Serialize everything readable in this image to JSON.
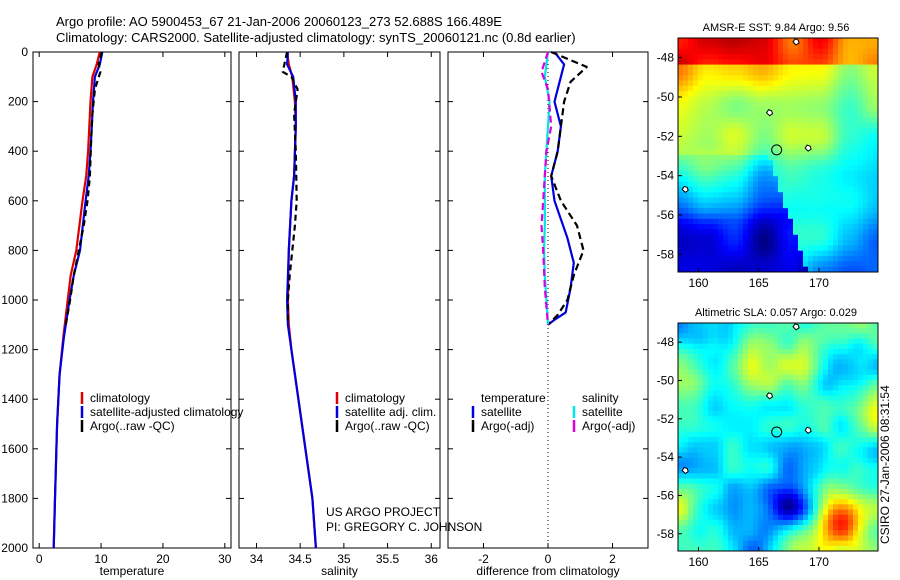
{
  "header": {
    "line1": "Argo profile: AO 5900453_67 21-Jan-2006 20060123_273 52.688S 166.489E",
    "line2": "Climatology: CARS2000. Satellite-adjusted climatology: synTS_20060121.nc (0.8d earlier)"
  },
  "credits": {
    "project": "US ARGO PROJECT",
    "pi": "PI: GREGORY C. JOHNSON",
    "stamp": "CSIRO 27-Jan-2006 08:31:54"
  },
  "colors": {
    "climatology": "#dd0000",
    "satellite": "#0000dd",
    "argo": "#000000",
    "salinity_satellite": "#00e5e5",
    "salinity_argo": "#dd00dd"
  },
  "chart_data": [
    {
      "id": "temperature",
      "type": "line",
      "xlabel": "temperature",
      "xlim": [
        -1,
        31
      ],
      "xticks": [
        0,
        10,
        20,
        30
      ],
      "xtick_labels": [
        "0",
        "10",
        "20",
        "30"
      ],
      "ylim": [
        2000,
        0
      ],
      "yticks": [
        0,
        200,
        400,
        600,
        800,
        1000,
        1200,
        1400,
        1600,
        1800,
        2000
      ],
      "ytick_labels": [
        "0",
        "200",
        "400",
        "600",
        "800",
        "1000",
        "1200",
        "1400",
        "1600",
        "1800",
        "2000"
      ],
      "legend": [
        "climatology",
        "satellite-adjusted climatology",
        "Argo(..raw -QC)"
      ],
      "series": [
        {
          "name": "climatology",
          "color": "#dd0000",
          "dash": "",
          "x": [
            9.8,
            9.3,
            8.6,
            8.3,
            8.1,
            7.9,
            7.6,
            7.0,
            6.0,
            5.1,
            4.6,
            3.9,
            3.3,
            2.9,
            2.55,
            2.35
          ],
          "y": [
            0,
            50,
            100,
            200,
            300,
            400,
            500,
            600,
            800,
            900,
            1000,
            1150,
            1300,
            1500,
            1800,
            2000
          ]
        },
        {
          "name": "satellite",
          "color": "#0000dd",
          "dash": "",
          "x": [
            10.2,
            9.8,
            9.0,
            8.7,
            8.5,
            8.3,
            8.0,
            7.5,
            6.6,
            5.6,
            4.9,
            4.0,
            3.3,
            2.9,
            2.55,
            2.35
          ],
          "y": [
            0,
            50,
            100,
            200,
            300,
            400,
            500,
            600,
            800,
            900,
            1000,
            1150,
            1300,
            1500,
            1800,
            2000
          ]
        },
        {
          "name": "Argo",
          "color": "#000000",
          "dash": "6,4",
          "x": [
            10.1,
            9.6,
            9.9,
            9.0,
            8.6,
            8.4,
            8.2,
            7.8,
            7.2,
            6.4,
            5.6,
            5.0,
            4.3
          ],
          "y": [
            0,
            50,
            80,
            150,
            250,
            350,
            500,
            600,
            700,
            800,
            900,
            1000,
            1100
          ]
        }
      ]
    },
    {
      "id": "salinity",
      "type": "line",
      "xlabel": "salinity",
      "xlim": [
        33.8,
        36.1
      ],
      "xticks": [
        34,
        34.5,
        35,
        35.5,
        36
      ],
      "xtick_labels": [
        "34",
        "34.5",
        "35",
        "35.5",
        "36"
      ],
      "ylim": [
        2000,
        0
      ],
      "legend": [
        "climatology",
        "satellite adj. clim.",
        "Argo(..raw -QC)"
      ],
      "series": [
        {
          "name": "climatology",
          "color": "#dd0000",
          "dash": "",
          "x": [
            34.35,
            34.37,
            34.41,
            34.44,
            34.45,
            34.43,
            34.4,
            34.37,
            34.36,
            34.37,
            34.4,
            34.48,
            34.56,
            34.64,
            34.68
          ],
          "y": [
            0,
            50,
            100,
            200,
            300,
            500,
            600,
            800,
            1000,
            1100,
            1200,
            1400,
            1600,
            1800,
            2000
          ]
        },
        {
          "name": "satellite",
          "color": "#0000dd",
          "dash": "",
          "x": [
            34.36,
            34.35,
            34.42,
            34.45,
            34.45,
            34.43,
            34.4,
            34.37,
            34.35,
            34.36,
            34.4,
            34.48,
            34.56,
            34.64,
            34.68
          ],
          "y": [
            0,
            50,
            100,
            200,
            300,
            500,
            600,
            800,
            1000,
            1100,
            1200,
            1400,
            1600,
            1800,
            2000
          ]
        },
        {
          "name": "Argo",
          "color": "#000000",
          "dash": "6,4",
          "x": [
            34.35,
            34.3,
            34.4,
            34.47,
            34.43,
            34.45,
            34.46,
            34.44,
            34.41,
            34.38,
            34.36,
            34.36
          ],
          "y": [
            0,
            80,
            100,
            150,
            250,
            400,
            600,
            700,
            800,
            900,
            1000,
            1100
          ]
        }
      ]
    },
    {
      "id": "difference",
      "type": "line",
      "xlabel": "difference from climatology",
      "xlim": [
        -3.1,
        3.1
      ],
      "xticks": [
        -2,
        0,
        2
      ],
      "xtick_labels": [
        "-2",
        "0",
        "2"
      ],
      "ylim": [
        2000,
        0
      ],
      "zero_line": true,
      "legend_temperature_title": "temperature",
      "legend_salinity_title": "salinity",
      "legend": [
        "satellite",
        "Argo(-adj)",
        "satellite",
        "Argo(-adj)"
      ],
      "series": [
        {
          "name": "temperature satellite",
          "color": "#0000dd",
          "dash": "",
          "x": [
            0.2,
            0.5,
            0.4,
            0.2,
            0.4,
            0.3,
            0.1,
            0.2,
            0.6,
            0.8,
            0.7,
            0.55,
            0.2,
            0.0
          ],
          "y": [
            0,
            50,
            100,
            200,
            300,
            400,
            500,
            600,
            750,
            850,
            950,
            1050,
            1080,
            1100
          ]
        },
        {
          "name": "temperature Argo",
          "color": "#000000",
          "dash": "7,4",
          "x": [
            0.1,
            1.2,
            0.7,
            0.5,
            0.4,
            0.3,
            0.1,
            0.4,
            0.9,
            1.1,
            0.8,
            0.6,
            0.3,
            0.0
          ],
          "y": [
            0,
            60,
            120,
            200,
            300,
            400,
            500,
            600,
            700,
            800,
            900,
            1000,
            1060,
            1100
          ]
        },
        {
          "name": "salinity satellite",
          "color": "#00e5e5",
          "dash": "",
          "x": [
            0.0,
            -0.1,
            0.05,
            0.0,
            -0.05,
            -0.1,
            -0.1,
            -0.1,
            -0.12,
            -0.1,
            -0.05,
            0.0
          ],
          "y": [
            0,
            100,
            200,
            300,
            400,
            500,
            600,
            700,
            800,
            900,
            1000,
            1100
          ]
        },
        {
          "name": "salinity Argo",
          "color": "#dd00dd",
          "dash": "7,4",
          "x": [
            0.0,
            -0.2,
            0.0,
            0.1,
            -0.05,
            -0.1,
            -0.15,
            -0.2,
            -0.15,
            -0.1,
            0.0
          ],
          "y": [
            0,
            80,
            150,
            300,
            400,
            500,
            600,
            700,
            800,
            950,
            1100
          ]
        }
      ]
    },
    {
      "id": "amsre_sst_map",
      "type": "heatmap",
      "title": "AMSR-E SST: 9.84 Argo: 9.56",
      "xticks": [
        160,
        165,
        170
      ],
      "xtick_labels": [
        "160",
        "165",
        "170"
      ],
      "yticks": [
        -48,
        -50,
        -52,
        -54,
        -56,
        -58
      ],
      "ytick_labels": [
        "-48",
        "-50",
        "-52",
        "-54",
        "-56",
        "-58"
      ],
      "xlim": [
        158.3,
        174.9
      ],
      "ylim": [
        -58.9,
        -47.0
      ],
      "float_position": {
        "lon": 166.489,
        "lat": -52.688
      }
    },
    {
      "id": "altimetric_sla_map",
      "type": "heatmap",
      "title": "Altimetric SLA: 0.057 Argo: 0.029",
      "xticks": [
        160,
        165,
        170
      ],
      "xtick_labels": [
        "160",
        "165",
        "170"
      ],
      "yticks": [
        -48,
        -50,
        -52,
        -54,
        -56,
        -58
      ],
      "ytick_labels": [
        "-48",
        "-50",
        "-52",
        "-54",
        "-56",
        "-58"
      ],
      "xlim": [
        158.3,
        174.9
      ],
      "ylim": [
        -58.9,
        -47.0
      ],
      "float_position": {
        "lon": 166.489,
        "lat": -52.688
      }
    }
  ]
}
